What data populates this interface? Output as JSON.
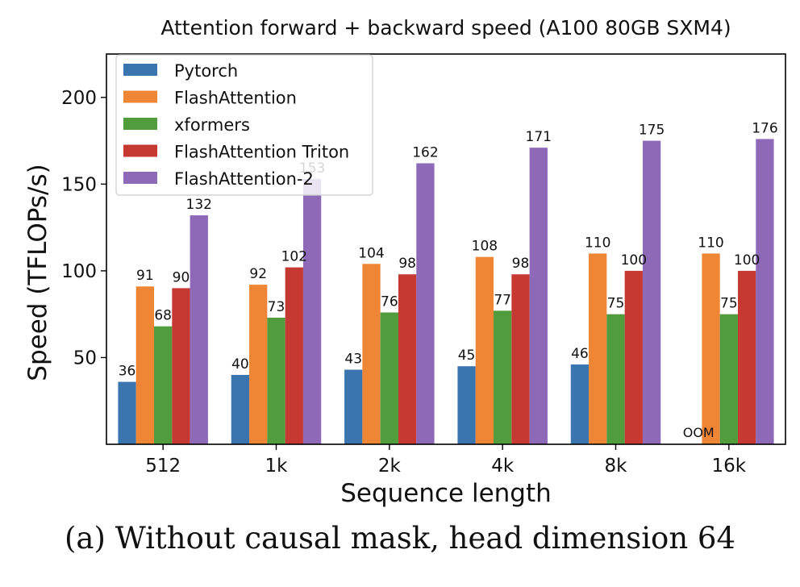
{
  "caption": "(a) Without causal mask, head dimension 64",
  "chart_data": {
    "type": "bar",
    "title": "Attention forward + backward speed (A100 80GB SXM4)",
    "xlabel": "Sequence length",
    "ylabel": "Speed (TFLOPs/s)",
    "ylim": [
      0,
      225
    ],
    "yticks": [
      50,
      100,
      150,
      200
    ],
    "categories": [
      "512",
      "1k",
      "2k",
      "4k",
      "8k",
      "16k"
    ],
    "legend_position": "top-left",
    "grid": false,
    "series": [
      {
        "name": "Pytorch",
        "color": "#3a75af",
        "values": [
          36,
          40,
          43,
          45,
          46,
          null
        ],
        "labels": [
          "36",
          "40",
          "43",
          "45",
          "46",
          "OOM"
        ]
      },
      {
        "name": "FlashAttention",
        "color": "#ef8636",
        "values": [
          91,
          92,
          104,
          108,
          110,
          110
        ],
        "labels": [
          "91",
          "92",
          "104",
          "108",
          "110",
          "110"
        ]
      },
      {
        "name": "xformers",
        "color": "#519d3e",
        "values": [
          68,
          73,
          76,
          77,
          75,
          75
        ],
        "labels": [
          "68",
          "73",
          "76",
          "77",
          "75",
          "75"
        ]
      },
      {
        "name": "FlashAttention Triton",
        "color": "#c53932",
        "values": [
          90,
          102,
          98,
          98,
          100,
          100
        ],
        "labels": [
          "90",
          "102",
          "98",
          "98",
          "100",
          "100"
        ]
      },
      {
        "name": "FlashAttention-2",
        "color": "#8d69b8",
        "values": [
          132,
          153,
          162,
          171,
          175,
          176
        ],
        "labels": [
          "132",
          "153",
          "162",
          "171",
          "175",
          "176"
        ]
      }
    ]
  }
}
